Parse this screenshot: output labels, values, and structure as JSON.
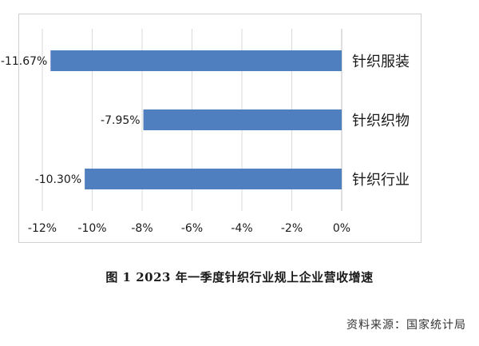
{
  "chart_data": {
    "type": "bar",
    "orientation": "horizontal",
    "categories": [
      "针织服装",
      "针织织物",
      "针织行业"
    ],
    "values": [
      -11.67,
      -7.95,
      -10.3
    ],
    "data_labels": [
      "-11.67%",
      "-7.95%",
      "-10.30%"
    ],
    "xlim": [
      -12,
      0
    ],
    "xticks": [
      -12,
      -10,
      -8,
      -6,
      -4,
      -2,
      0
    ],
    "xtick_labels": [
      "-12%",
      "-10%",
      "-8%",
      "-6%",
      "-4%",
      "-2%",
      "0%"
    ],
    "grid": "vertical",
    "bar_color": "#4f7fbf",
    "grid_color": "#d9d9d9"
  },
  "caption": "图 1   2023 年一季度针织行业规上企业营收增速",
  "source": "资料来源：国家统计局"
}
